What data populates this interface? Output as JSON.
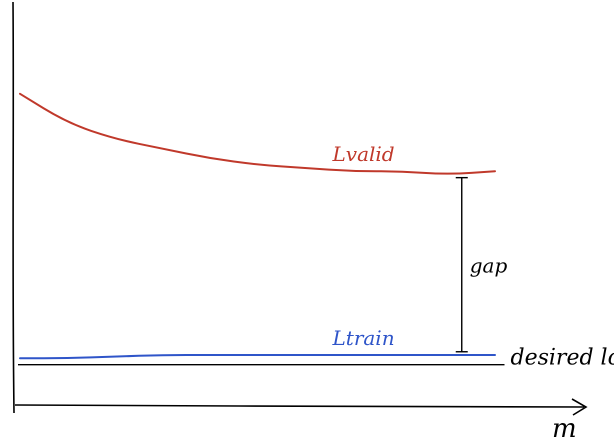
{
  "chart_data": {
    "type": "line",
    "xlabel": "m",
    "ylabel": "",
    "series": [
      {
        "name": "Lvalid",
        "color": "#c0392b",
        "x": [
          0.0,
          0.1,
          0.2,
          0.3,
          0.4,
          0.5,
          0.6,
          0.7,
          0.8,
          0.9,
          1.0
        ],
        "y": [
          0.84,
          0.75,
          0.7,
          0.67,
          0.64,
          0.62,
          0.61,
          0.6,
          0.6,
          0.59,
          0.6
        ]
      },
      {
        "name": "Ltrain",
        "color": "#2f55c9",
        "x": [
          0.0,
          0.1,
          0.2,
          0.3,
          0.4,
          0.5,
          0.6,
          0.7,
          0.8,
          0.9,
          1.0
        ],
        "y": [
          0.02,
          0.02,
          0.025,
          0.03,
          0.03,
          0.03,
          0.03,
          0.03,
          0.03,
          0.03,
          0.03
        ]
      }
    ],
    "reference_line": {
      "label": "desired loss",
      "y": 0.0,
      "color": "#000000"
    },
    "annotations": [
      {
        "label": "gap",
        "x": 0.93,
        "y_from": 0.04,
        "y_to": 0.58
      }
    ],
    "xlim": [
      0,
      1.2
    ],
    "ylim": [
      -0.06,
      1.1
    ],
    "grid": false
  }
}
